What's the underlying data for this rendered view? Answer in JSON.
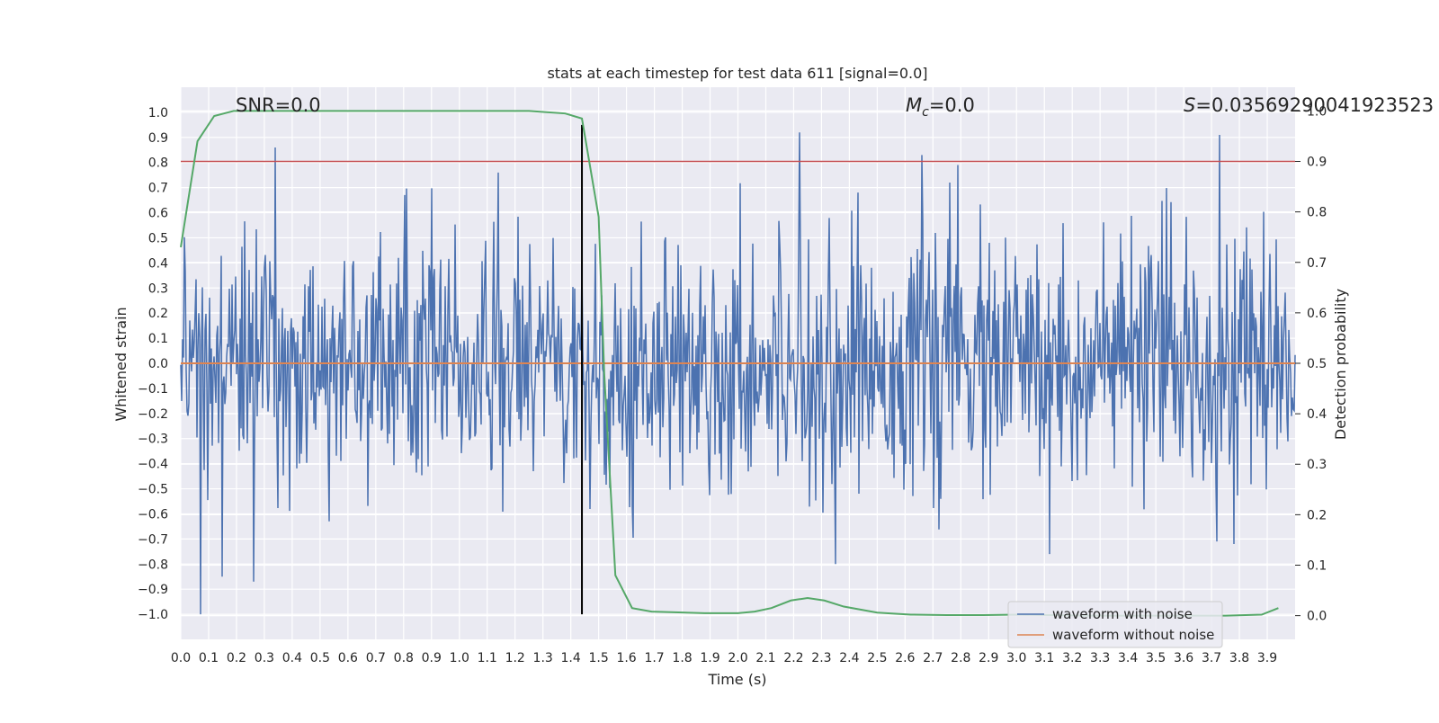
{
  "chart_data": {
    "type": "line",
    "title": "stats at each timestep for test data 611 [signal=0.0]",
    "xlabel": "Time (s)",
    "ylabel": "Whitened strain",
    "y2label": "Detection probability",
    "xlim": [
      0.0,
      4.0
    ],
    "ylim": [
      -1.1,
      1.1
    ],
    "y2lim": [
      -0.047,
      1.047
    ],
    "x_ticks": [
      "0.0",
      "0.1",
      "0.2",
      "0.3",
      "0.4",
      "0.5",
      "0.6",
      "0.7",
      "0.8",
      "0.9",
      "1.0",
      "1.1",
      "1.2",
      "1.3",
      "1.4",
      "1.5",
      "1.6",
      "1.7",
      "1.8",
      "1.9",
      "2.0",
      "2.1",
      "2.2",
      "2.3",
      "2.4",
      "2.5",
      "2.6",
      "2.7",
      "2.8",
      "2.9",
      "3.0",
      "3.1",
      "3.2",
      "3.3",
      "3.4",
      "3.5",
      "3.6",
      "3.7",
      "3.8",
      "3.9"
    ],
    "y_ticks": [
      "1.0",
      "0.9",
      "0.8",
      "0.7",
      "0.6",
      "0.5",
      "0.4",
      "0.3",
      "0.2",
      "0.1",
      "0.0",
      "−0.1",
      "−0.2",
      "−0.3",
      "−0.4",
      "−0.5",
      "−0.6",
      "−0.7",
      "−0.8",
      "−0.9",
      "−1.0"
    ],
    "y2_ticks": [
      "1.0",
      "0.9",
      "0.8",
      "0.7",
      "0.6",
      "0.5",
      "0.4",
      "0.3",
      "0.2",
      "0.1",
      "0.0"
    ],
    "annotations": {
      "snr": "SNR=0.0",
      "mc_symbol": "M",
      "mc_sub": "c",
      "mc_value": "=0.0",
      "s_symbol": "S",
      "s_value": "=0.03569290041923523"
    },
    "series": [
      {
        "name": "waveform with noise",
        "color": "#4c72b0",
        "axis": "left",
        "style": "dense noise, mostly within ±0.45, peaks to about ±0.9",
        "peaks": [
          {
            "x": 0.07,
            "y": -1.0
          },
          {
            "x": 0.15,
            "y": -0.85
          },
          {
            "x": 0.26,
            "y": -0.87
          },
          {
            "x": 0.34,
            "y": 0.86
          },
          {
            "x": 1.14,
            "y": 0.76
          },
          {
            "x": 2.22,
            "y": 0.92
          },
          {
            "x": 2.35,
            "y": -0.8
          },
          {
            "x": 2.66,
            "y": 0.83
          },
          {
            "x": 2.79,
            "y": 0.79
          },
          {
            "x": 3.12,
            "y": -0.76
          },
          {
            "x": 3.73,
            "y": 0.91
          }
        ]
      },
      {
        "name": "waveform without noise",
        "color": "#dd8452",
        "axis": "left",
        "x": [
          0.0,
          4.0
        ],
        "y": [
          0.0,
          0.0
        ]
      },
      {
        "name": "detection probability",
        "color": "#55a868",
        "axis": "right",
        "x": [
          0.0,
          0.06,
          0.12,
          0.19,
          0.25,
          0.5,
          1.0,
          1.25,
          1.38,
          1.44,
          1.5,
          1.52,
          1.56,
          1.62,
          1.69,
          1.88,
          2.0,
          2.06,
          2.12,
          2.19,
          2.25,
          2.31,
          2.38,
          2.44,
          2.5,
          2.62,
          2.75,
          2.88,
          3.0,
          3.25,
          3.5,
          3.75,
          3.88,
          3.94
        ],
        "y": [
          0.73,
          0.94,
          0.99,
          1.0,
          1.0,
          1.0,
          1.0,
          1.0,
          0.995,
          0.985,
          0.79,
          0.48,
          0.08,
          0.015,
          0.008,
          0.005,
          0.005,
          0.008,
          0.015,
          0.03,
          0.035,
          0.03,
          0.018,
          0.012,
          0.006,
          0.002,
          0.001,
          0.001,
          0.002,
          0.0,
          0.0,
          0.0,
          0.002,
          0.015
        ]
      }
    ],
    "reference_lines": [
      {
        "orientation": "horizontal",
        "axis": "right",
        "y": 0.9,
        "color": "#c44e52"
      },
      {
        "orientation": "vertical",
        "x": 1.44,
        "ymin": -1.0,
        "ymax": 0.95,
        "color": "#000000"
      }
    ],
    "legend": {
      "placement": "lower-right",
      "entries": [
        "waveform with noise",
        "waveform without noise"
      ]
    },
    "grid": true,
    "background": "#eaeaf2"
  }
}
